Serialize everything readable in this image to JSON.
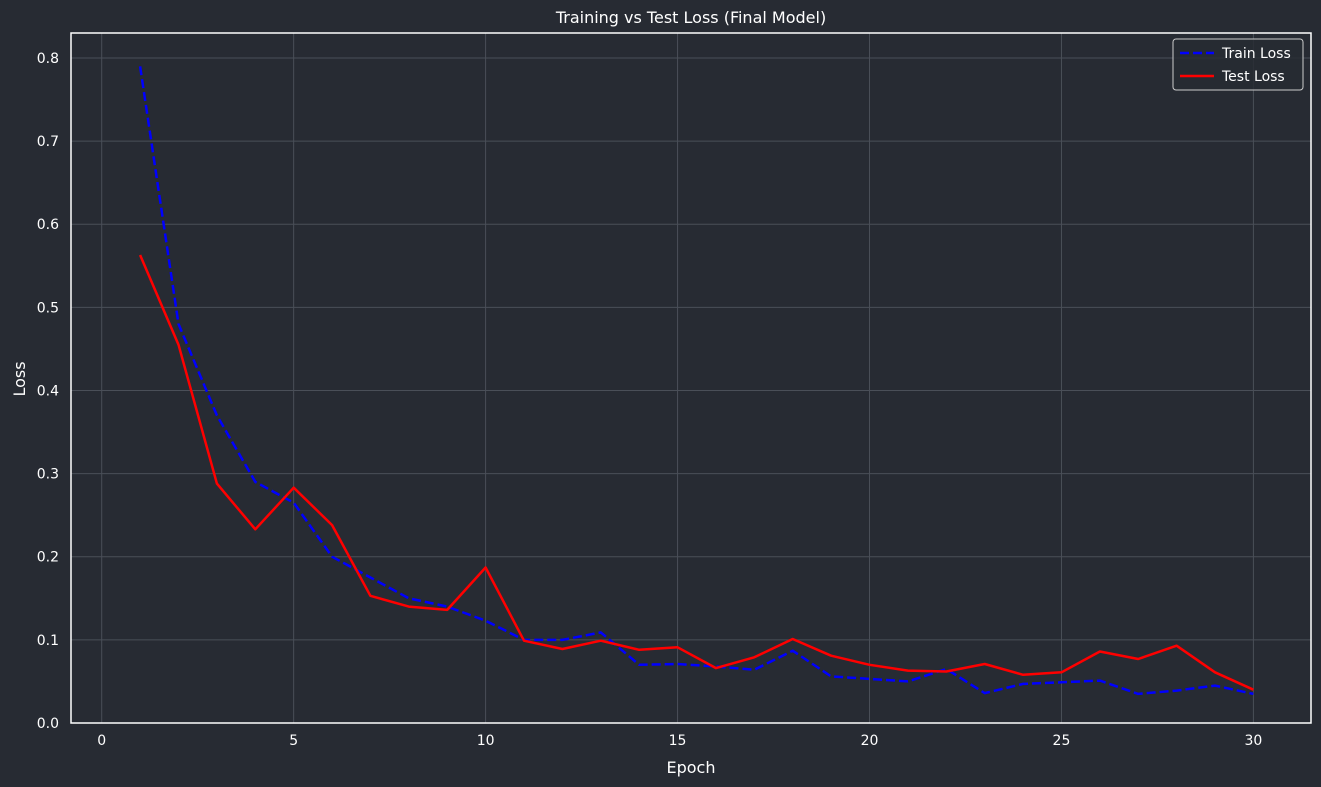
{
  "chart_data": {
    "type": "line",
    "title": "Training vs Test Loss (Final Model)",
    "xlabel": "Epoch",
    "ylabel": "Loss",
    "xlim": [
      -0.8,
      31.5
    ],
    "ylim": [
      0,
      0.83
    ],
    "xticks": [
      0,
      5,
      10,
      15,
      20,
      25,
      30
    ],
    "yticks": [
      0.0,
      0.1,
      0.2,
      0.3,
      0.4,
      0.5,
      0.6,
      0.7,
      0.8
    ],
    "grid": true,
    "legend_position": "top-right",
    "x": [
      1,
      2,
      3,
      4,
      5,
      6,
      7,
      8,
      9,
      10,
      11,
      12,
      13,
      14,
      15,
      16,
      17,
      18,
      19,
      20,
      21,
      22,
      23,
      24,
      25,
      26,
      27,
      28,
      29,
      30
    ],
    "series": [
      {
        "name": "Train Loss",
        "color": "#0000ff",
        "dash": "dashed",
        "values": [
          0.79,
          0.48,
          0.37,
          0.29,
          0.265,
          0.2,
          0.175,
          0.15,
          0.14,
          0.123,
          0.1,
          0.1,
          0.109,
          0.07,
          0.071,
          0.068,
          0.064,
          0.087,
          0.056,
          0.053,
          0.05,
          0.065,
          0.036,
          0.047,
          0.049,
          0.051,
          0.035,
          0.039,
          0.045,
          0.035
        ]
      },
      {
        "name": "Test Loss",
        "color": "#ff0000",
        "dash": "solid",
        "values": [
          0.563,
          0.455,
          0.288,
          0.233,
          0.283,
          0.238,
          0.153,
          0.14,
          0.136,
          0.187,
          0.099,
          0.089,
          0.099,
          0.088,
          0.091,
          0.066,
          0.079,
          0.101,
          0.081,
          0.07,
          0.063,
          0.062,
          0.071,
          0.058,
          0.061,
          0.086,
          0.077,
          0.093,
          0.061,
          0.04
        ]
      }
    ]
  }
}
